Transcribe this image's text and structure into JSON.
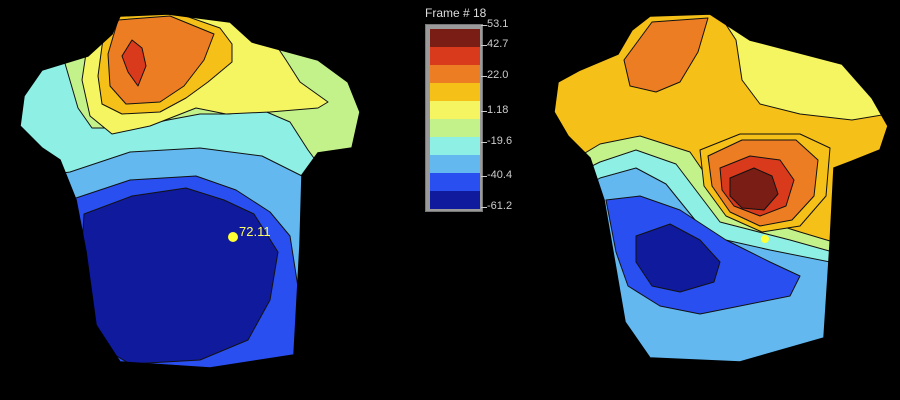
{
  "legend": {
    "frame_label": "Frame # 18",
    "ticks": [
      "53.1",
      "42.7",
      "22.0",
      "1.18",
      "-19.6",
      "-40.4",
      "-61.2"
    ],
    "swatch_colors": [
      "#7a1d14",
      "#d93a1c",
      "#ec7d22",
      "#f5c018",
      "#f5f561",
      "#c4f28a",
      "#8ef0e4",
      "#63b8f0",
      "#2a4ff0",
      "#101a9c"
    ]
  },
  "maps": [
    {
      "name": "left-torso-map",
      "marker_label": "72.11",
      "marker_color": "#ffff33"
    },
    {
      "name": "right-torso-map",
      "marker_label": "",
      "marker_color": "#ffff33"
    }
  ],
  "palette": {
    "dark_red": "#7a1d14",
    "red": "#d93a1c",
    "orange": "#ec7d22",
    "gold": "#f5c018",
    "yellow": "#f5f561",
    "light_green": "#c4f28a",
    "cyan": "#8ef0e4",
    "light_blue": "#63b8f0",
    "blue": "#2a4ff0",
    "navy": "#101a9c"
  }
}
